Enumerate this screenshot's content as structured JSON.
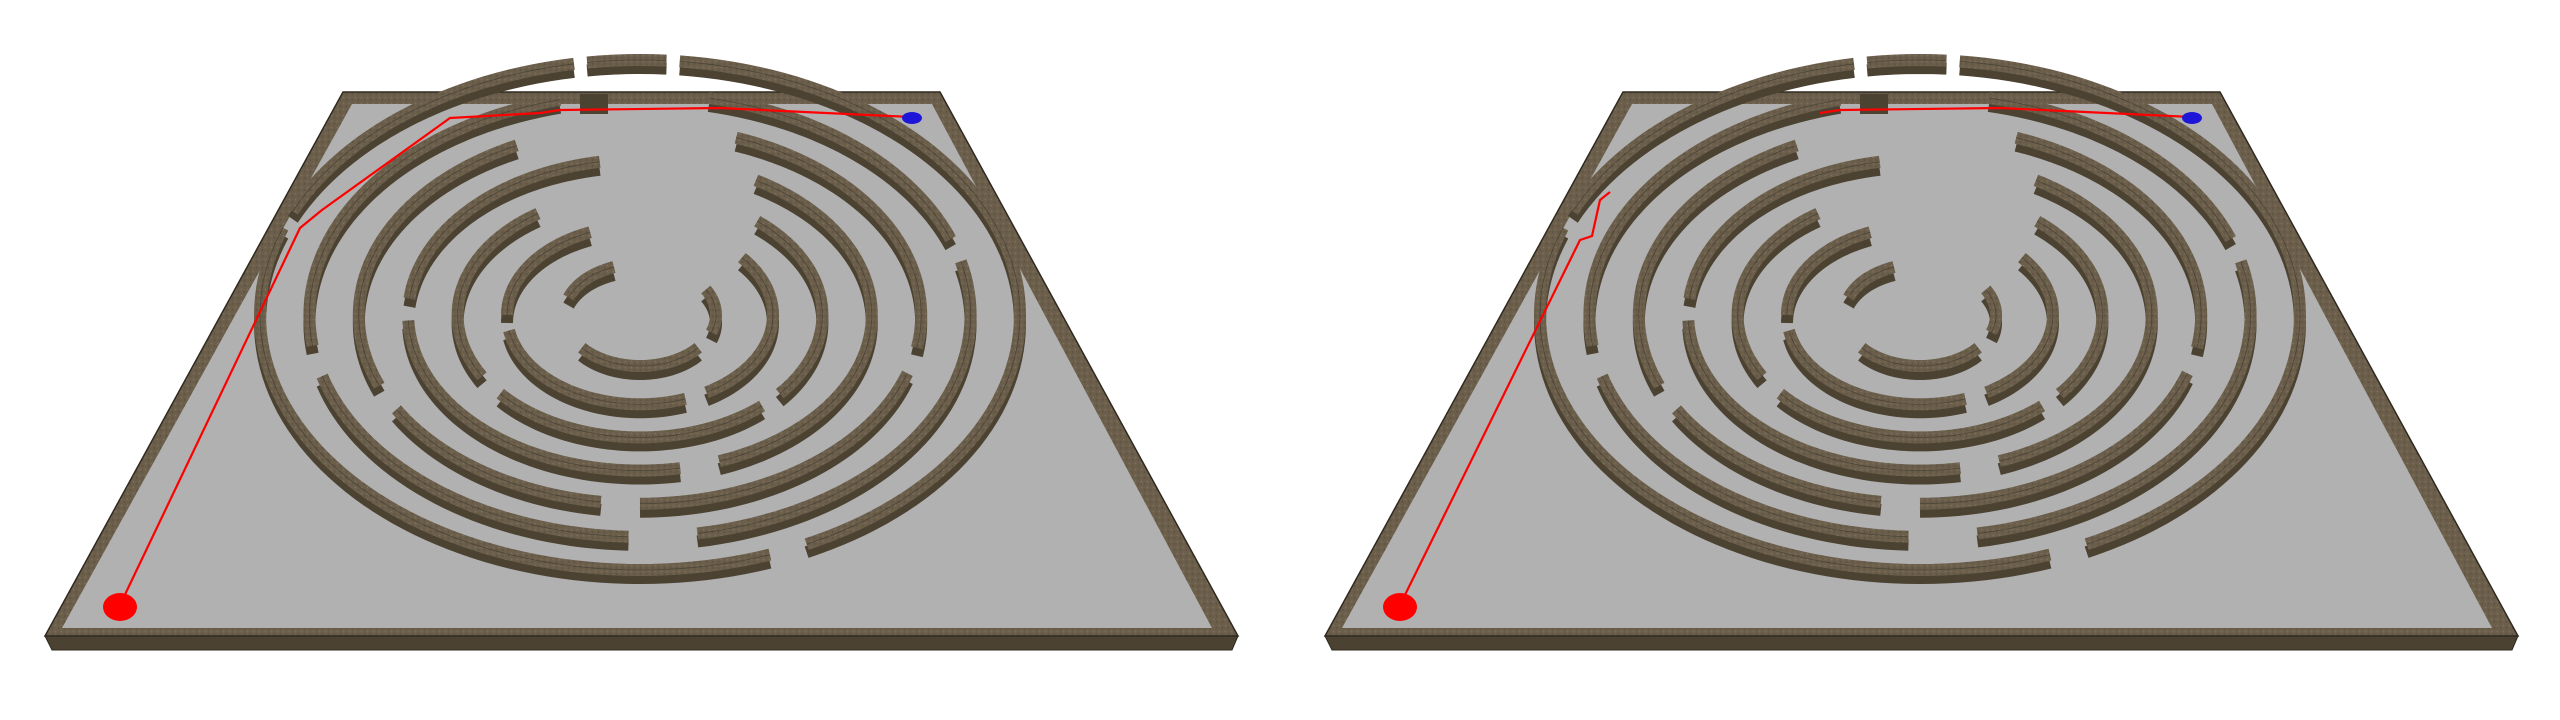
{
  "views": [
    {
      "name": "left-view",
      "path_variant": "long"
    },
    {
      "name": "right-view",
      "path_variant": "short"
    }
  ],
  "colors": {
    "background": "#ffffff",
    "floor": "#b1b1b1",
    "wall_top": "#6b5f4c",
    "wall_side": "#4b4232",
    "wall_edge": "#2f2920",
    "path": "#ff0000",
    "start_marker": "#ff0000",
    "goal_marker": "#1d16d8"
  },
  "markers": {
    "start": "red-start-marker",
    "goal": "blue-goal-marker"
  }
}
